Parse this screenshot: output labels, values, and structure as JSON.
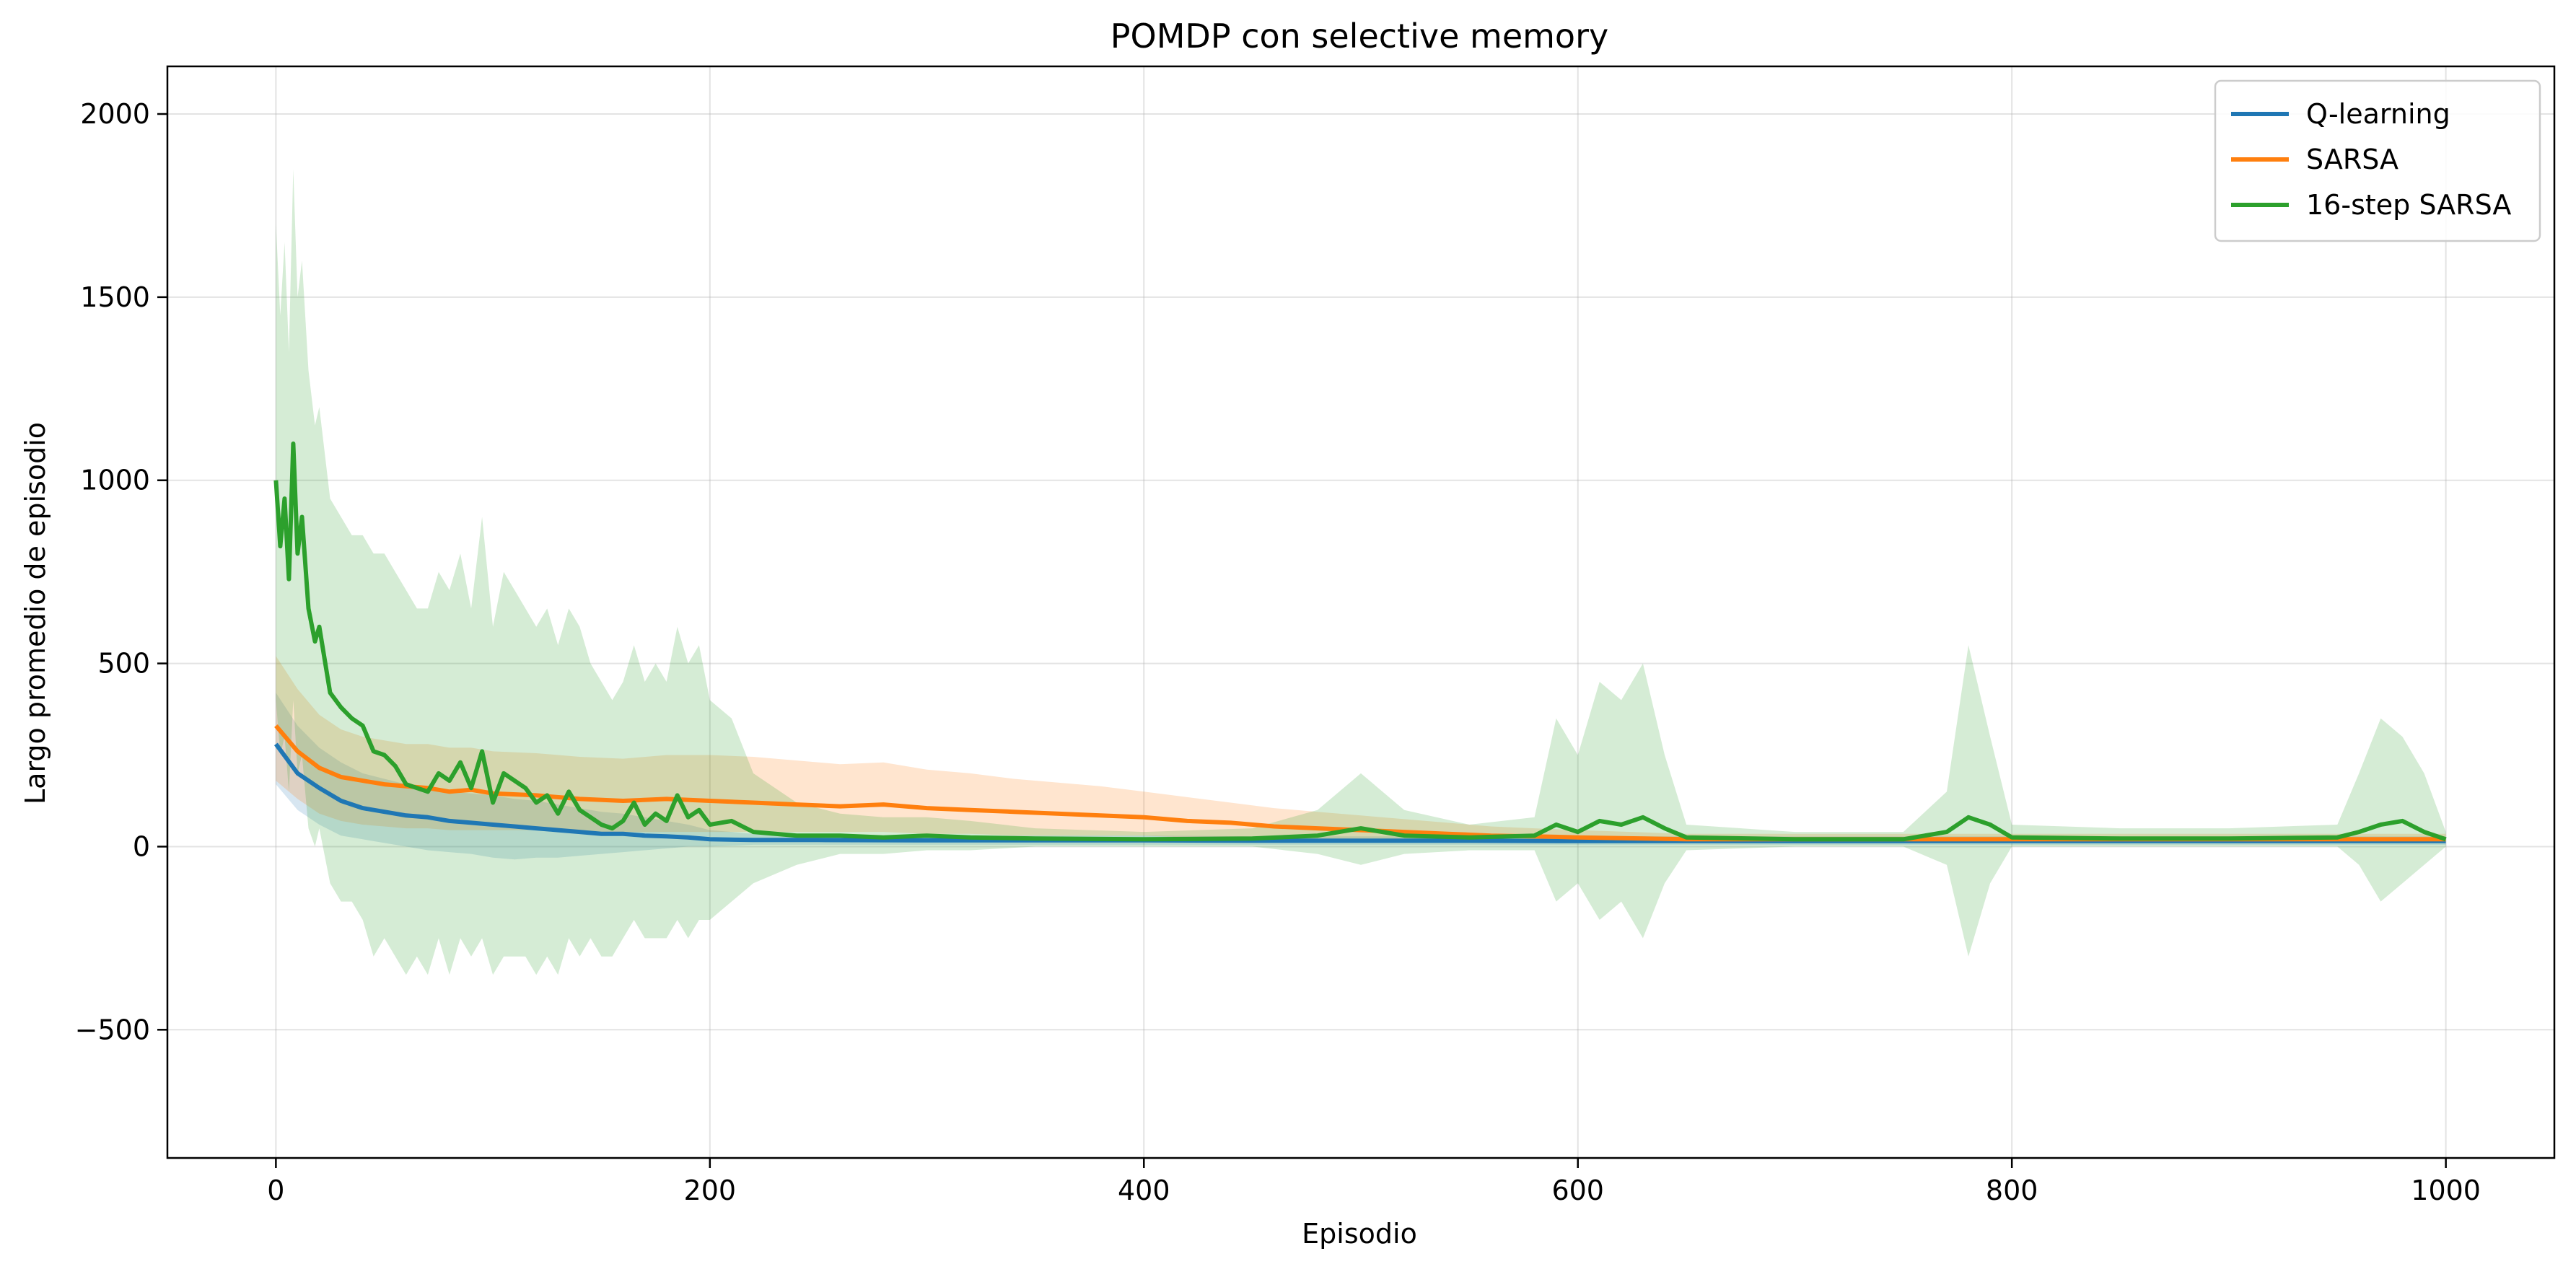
{
  "chart_data": {
    "type": "line",
    "title": "POMDP con selective memory",
    "xlabel": "Episodio",
    "ylabel": "Largo promedio de episodio",
    "xlim": [
      -50,
      1050
    ],
    "ylim": [
      -850,
      2130
    ],
    "xticks": [
      0,
      200,
      400,
      600,
      800,
      1000
    ],
    "xtick_labels": [
      "0",
      "200",
      "400",
      "600",
      "800",
      "1000"
    ],
    "yticks": [
      -500,
      0,
      500,
      1000,
      1500,
      2000
    ],
    "ytick_labels": [
      "−500",
      "0",
      "500",
      "1000",
      "1500",
      "2000"
    ],
    "grid": true,
    "legend_position": "top-right",
    "series": [
      {
        "name": "Q-learning",
        "color": "#1f77b4",
        "x": [
          0,
          10,
          20,
          30,
          40,
          50,
          60,
          70,
          80,
          90,
          100,
          110,
          120,
          130,
          140,
          150,
          160,
          170,
          180,
          190,
          200,
          220,
          250,
          300,
          350,
          400,
          450,
          500,
          550,
          600,
          650,
          700,
          750,
          800,
          850,
          900,
          950,
          1000
        ],
        "y": [
          280,
          200,
          160,
          125,
          105,
          95,
          85,
          80,
          70,
          65,
          60,
          55,
          50,
          45,
          40,
          35,
          35,
          30,
          28,
          25,
          20,
          18,
          18,
          17,
          17,
          17,
          16,
          16,
          16,
          15,
          15,
          15,
          15,
          15,
          15,
          15,
          15,
          15
        ],
        "band_low": [
          170,
          100,
          60,
          30,
          20,
          10,
          0,
          -10,
          -15,
          -20,
          -30,
          -35,
          -30,
          -30,
          -25,
          -20,
          -15,
          -10,
          -5,
          0,
          0,
          5,
          5,
          5,
          5,
          5,
          5,
          5,
          5,
          5,
          5,
          5,
          5,
          5,
          5,
          5,
          5,
          5
        ],
        "band_high": [
          420,
          330,
          270,
          230,
          200,
          185,
          170,
          165,
          150,
          145,
          140,
          130,
          125,
          115,
          105,
          95,
          90,
          80,
          70,
          60,
          45,
          35,
          32,
          30,
          30,
          30,
          28,
          28,
          28,
          28,
          28,
          28,
          28,
          28,
          28,
          28,
          28,
          28
        ]
      },
      {
        "name": "SARSA",
        "color": "#ff7f0e",
        "x": [
          0,
          10,
          20,
          30,
          40,
          50,
          60,
          70,
          80,
          90,
          100,
          120,
          140,
          160,
          180,
          200,
          220,
          240,
          260,
          280,
          300,
          320,
          340,
          360,
          380,
          400,
          420,
          440,
          460,
          480,
          500,
          520,
          540,
          560,
          580,
          600,
          650,
          700,
          750,
          800,
          850,
          900,
          950,
          1000
        ],
        "y": [
          330,
          260,
          215,
          190,
          180,
          170,
          165,
          160,
          150,
          155,
          145,
          140,
          130,
          125,
          130,
          125,
          120,
          115,
          110,
          115,
          105,
          100,
          95,
          90,
          85,
          80,
          70,
          65,
          55,
          50,
          45,
          40,
          35,
          30,
          28,
          25,
          20,
          20,
          20,
          20,
          20,
          20,
          20,
          20
        ],
        "band_low": [
          180,
          130,
          90,
          70,
          60,
          55,
          50,
          50,
          45,
          45,
          45,
          45,
          40,
          40,
          40,
          40,
          40,
          40,
          40,
          40,
          35,
          35,
          30,
          30,
          30,
          30,
          25,
          25,
          20,
          20,
          15,
          15,
          10,
          10,
          10,
          10,
          10,
          10,
          10,
          10,
          10,
          10,
          10,
          10
        ],
        "band_high": [
          520,
          430,
          360,
          320,
          300,
          290,
          280,
          280,
          270,
          270,
          260,
          255,
          245,
          240,
          250,
          250,
          245,
          235,
          225,
          230,
          210,
          200,
          185,
          175,
          165,
          150,
          135,
          120,
          105,
          95,
          85,
          75,
          65,
          55,
          50,
          45,
          35,
          35,
          35,
          35,
          35,
          35,
          35,
          35
        ]
      },
      {
        "name": "16-step SARSA",
        "color": "#2ca02c",
        "x": [
          0,
          2,
          4,
          6,
          8,
          10,
          12,
          15,
          18,
          20,
          25,
          30,
          35,
          40,
          45,
          50,
          55,
          60,
          65,
          70,
          75,
          80,
          85,
          90,
          95,
          100,
          105,
          110,
          115,
          120,
          125,
          130,
          135,
          140,
          145,
          150,
          155,
          160,
          165,
          170,
          175,
          180,
          185,
          190,
          195,
          200,
          210,
          220,
          240,
          260,
          280,
          300,
          320,
          350,
          400,
          450,
          480,
          500,
          520,
          550,
          580,
          590,
          600,
          610,
          620,
          630,
          640,
          650,
          700,
          750,
          770,
          780,
          790,
          800,
          850,
          900,
          950,
          960,
          970,
          980,
          990,
          1000
        ],
        "y": [
          1000,
          820,
          950,
          730,
          1100,
          800,
          900,
          650,
          560,
          600,
          420,
          380,
          350,
          330,
          260,
          250,
          220,
          170,
          160,
          150,
          200,
          180,
          230,
          160,
          260,
          120,
          200,
          180,
          160,
          120,
          140,
          90,
          150,
          100,
          80,
          60,
          50,
          70,
          120,
          60,
          90,
          70,
          140,
          80,
          100,
          60,
          70,
          40,
          30,
          30,
          25,
          30,
          25,
          22,
          20,
          22,
          30,
          50,
          30,
          25,
          30,
          60,
          40,
          70,
          60,
          80,
          50,
          25,
          20,
          20,
          40,
          80,
          60,
          25,
          22,
          22,
          25,
          40,
          60,
          70,
          40,
          20
        ],
        "band_low": [
          400,
          250,
          300,
          150,
          400,
          200,
          250,
          50,
          0,
          50,
          -100,
          -150,
          -150,
          -200,
          -300,
          -250,
          -300,
          -350,
          -300,
          -350,
          -250,
          -350,
          -250,
          -300,
          -250,
          -350,
          -300,
          -300,
          -300,
          -350,
          -300,
          -350,
          -250,
          -300,
          -250,
          -300,
          -300,
          -250,
          -200,
          -250,
          -250,
          -250,
          -200,
          -250,
          -200,
          -200,
          -150,
          -100,
          -50,
          -20,
          -20,
          -10,
          -10,
          0,
          0,
          0,
          -20,
          -50,
          -20,
          -10,
          -10,
          -150,
          -100,
          -200,
          -150,
          -250,
          -100,
          -10,
          0,
          0,
          -50,
          -300,
          -100,
          0,
          0,
          0,
          0,
          -50,
          -150,
          -100,
          -50,
          0
        ],
        "band_high": [
          1700,
          1450,
          1650,
          1350,
          1850,
          1500,
          1600,
          1300,
          1150,
          1200,
          950,
          900,
          850,
          850,
          800,
          800,
          750,
          700,
          650,
          650,
          750,
          700,
          800,
          650,
          900,
          600,
          750,
          700,
          650,
          600,
          650,
          550,
          650,
          600,
          500,
          450,
          400,
          450,
          550,
          450,
          500,
          450,
          600,
          500,
          550,
          400,
          350,
          200,
          120,
          90,
          80,
          80,
          70,
          50,
          40,
          50,
          100,
          200,
          100,
          60,
          80,
          350,
          250,
          450,
          400,
          500,
          250,
          60,
          40,
          40,
          150,
          550,
          300,
          60,
          50,
          50,
          60,
          200,
          350,
          300,
          200,
          40
        ]
      }
    ]
  }
}
